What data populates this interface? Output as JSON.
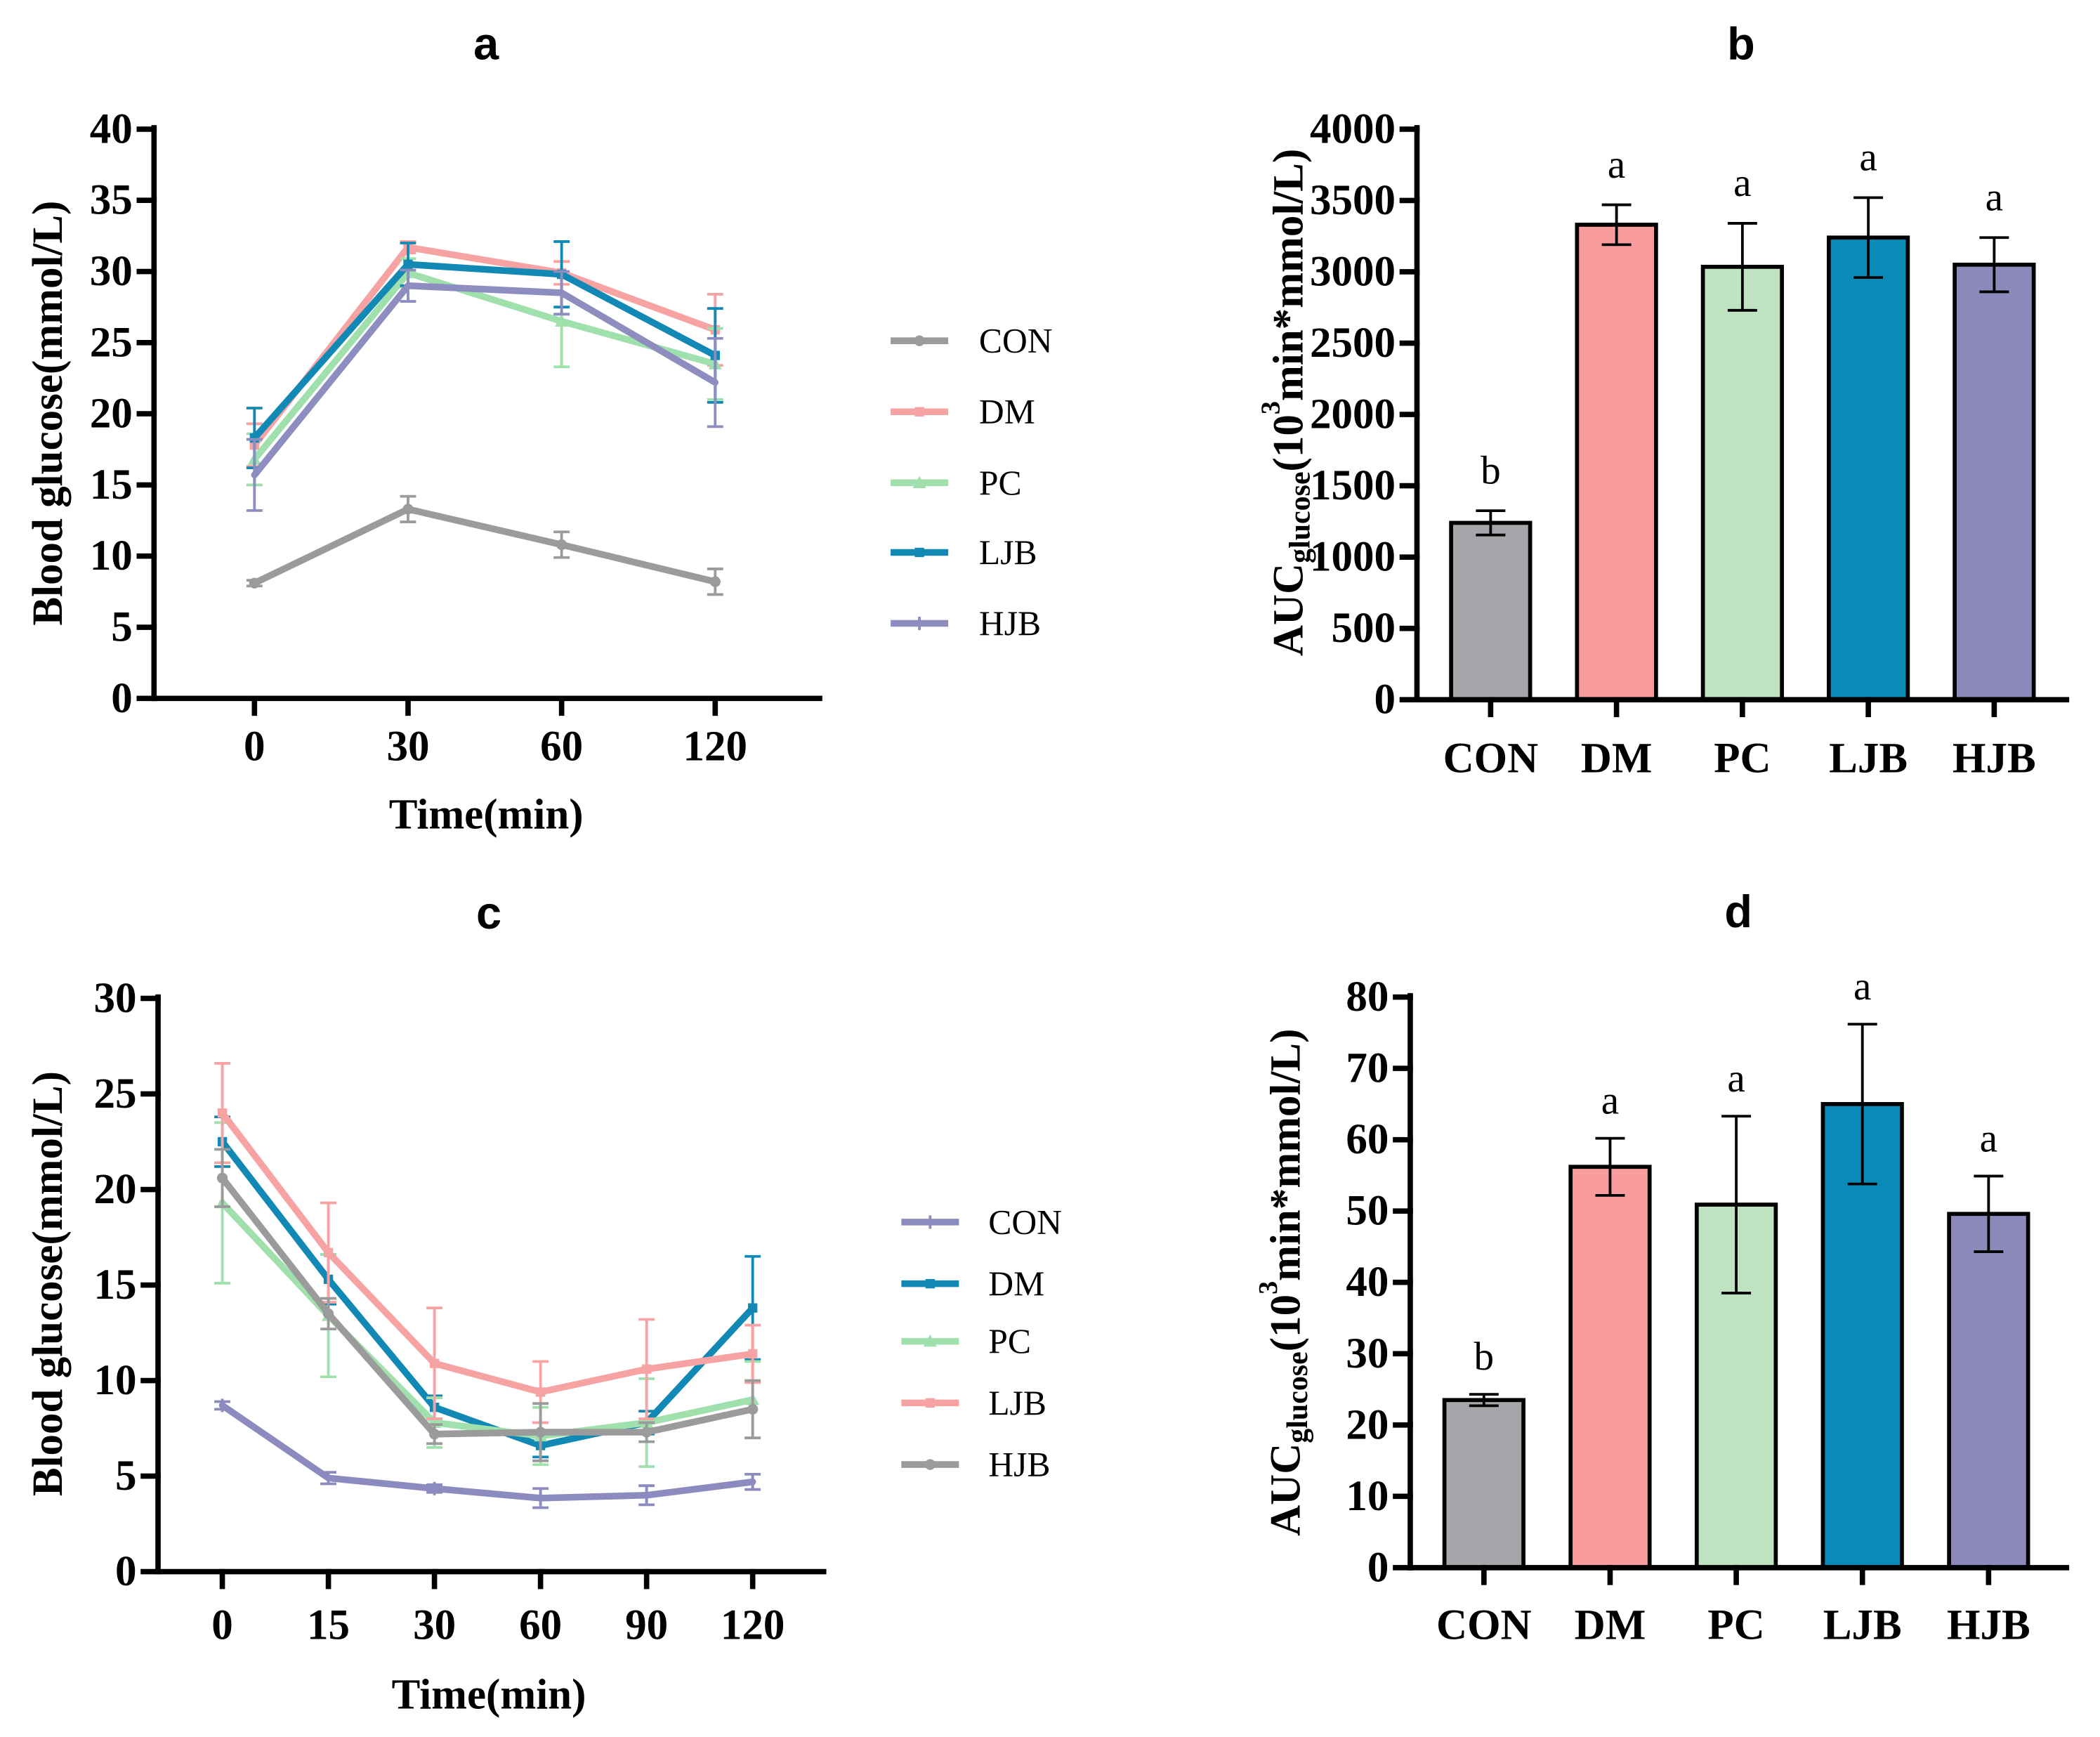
{
  "chart_data": [
    {
      "type": "line",
      "title": "a",
      "xlabel": "Time(min)",
      "ylabel": "Blood glucose(mmol/L)",
      "categories": [
        "0",
        "30",
        "60",
        "120"
      ],
      "ylim": [
        0,
        40
      ],
      "yticks": [
        0,
        5,
        10,
        15,
        20,
        25,
        30,
        35,
        40
      ],
      "series": [
        {
          "name": "CON",
          "color": "#9b9b9b",
          "values": [
            8.1,
            13.3,
            10.8,
            8.2
          ],
          "errors": [
            0.2,
            0.9,
            0.9,
            0.9
          ]
        },
        {
          "name": "DM",
          "color": "#f7a3a3",
          "values": [
            17.8,
            31.7,
            29.9,
            25.9
          ],
          "errors": [
            1.5,
            0.4,
            0.8,
            2.5
          ]
        },
        {
          "name": "PC",
          "color": "#9fe0ac",
          "values": [
            16.8,
            29.9,
            26.5,
            23.5
          ],
          "errors": [
            1.8,
            1.0,
            3.2,
            2.5
          ]
        },
        {
          "name": "LJB",
          "color": "#1289b5",
          "values": [
            18.3,
            30.5,
            29.8,
            24.1
          ],
          "errors": [
            2.1,
            1.5,
            2.3,
            3.3
          ]
        },
        {
          "name": "HJB",
          "color": "#8d8dc0",
          "values": [
            15.7,
            29.0,
            28.5,
            22.2
          ],
          "errors": [
            2.5,
            1.1,
            1.5,
            3.1
          ]
        }
      ]
    },
    {
      "type": "bar",
      "title": "b",
      "ylabel": {
        "main": "AUC",
        "sub": "glucose",
        "open": "(10",
        "sup": "3",
        "close": "min*mmol/L)"
      },
      "categories": [
        "CON",
        "DM",
        "PC",
        "LJB",
        "HJB"
      ],
      "values": [
        1240,
        3330,
        3035,
        3240,
        3050
      ],
      "errors": [
        85,
        140,
        305,
        280,
        190
      ],
      "significance": [
        "b",
        "a",
        "a",
        "a",
        "a"
      ],
      "colors": [
        "#a6a5a9",
        "#f99c9e",
        "#bfe3c1",
        "#0a8ab7",
        "#8b8abb"
      ],
      "ylim": [
        0,
        4000
      ],
      "yticks": [
        0,
        500,
        1000,
        1500,
        2000,
        2500,
        3000,
        3500,
        4000
      ]
    },
    {
      "type": "line",
      "title": "c",
      "xlabel": "Time(min)",
      "ylabel": "Blood glucose(mmol/L)",
      "categories": [
        "0",
        "15",
        "30",
        "60",
        "90",
        "120"
      ],
      "ylim": [
        0,
        30
      ],
      "yticks": [
        0,
        5,
        10,
        15,
        20,
        25,
        30
      ],
      "series": [
        {
          "name": "CON",
          "color": "#8b8bc0",
          "values": [
            8.7,
            4.9,
            4.35,
            3.85,
            4.0,
            4.7
          ],
          "errors": [
            0.2,
            0.3,
            0.2,
            0.5,
            0.5,
            0.4
          ]
        },
        {
          "name": "DM",
          "color": "#1289b5",
          "values": [
            22.5,
            15.3,
            8.6,
            6.6,
            7.8,
            13.8
          ],
          "errors": [
            1.3,
            1.3,
            0.6,
            0.6,
            0.6,
            2.7
          ]
        },
        {
          "name": "PC",
          "color": "#9fe0ac",
          "values": [
            19.3,
            13.4,
            7.8,
            7.1,
            7.8,
            9.0
          ],
          "errors": [
            4.2,
            3.2,
            1.3,
            1.5,
            2.3,
            2.0
          ]
        },
        {
          "name": "LJB",
          "color": "#f7a3a3",
          "values": [
            24.0,
            16.7,
            10.9,
            9.4,
            10.6,
            11.4
          ],
          "errors": [
            2.6,
            2.6,
            2.9,
            1.6,
            2.6,
            1.5
          ]
        },
        {
          "name": "HJB",
          "color": "#9b9b9b",
          "values": [
            20.6,
            13.5,
            7.2,
            7.3,
            7.3,
            8.5
          ],
          "errors": [
            1.5,
            0.8,
            0.5,
            1.5,
            0.5,
            1.5
          ]
        }
      ]
    },
    {
      "type": "bar",
      "title": "d",
      "ylabel": {
        "main": "AUC",
        "sub": "glucose",
        "open": "(10",
        "sup": "3",
        "close": "min*mmol/L)"
      },
      "categories": [
        "CON",
        "DM",
        "PC",
        "LJB",
        "HJB"
      ],
      "values": [
        23.5,
        56.2,
        50.9,
        65.0,
        49.6
      ],
      "errors": [
        0.8,
        4.0,
        12.4,
        11.2,
        5.3
      ],
      "significance": [
        "b",
        "a",
        "a",
        "a",
        "a"
      ],
      "colors": [
        "#a6a5a9",
        "#f99c9e",
        "#bfe3c1",
        "#0a8ab7",
        "#8b8abb"
      ],
      "ylim": [
        0,
        80
      ],
      "yticks": [
        0,
        10,
        20,
        30,
        40,
        50,
        60,
        70,
        80
      ]
    }
  ]
}
